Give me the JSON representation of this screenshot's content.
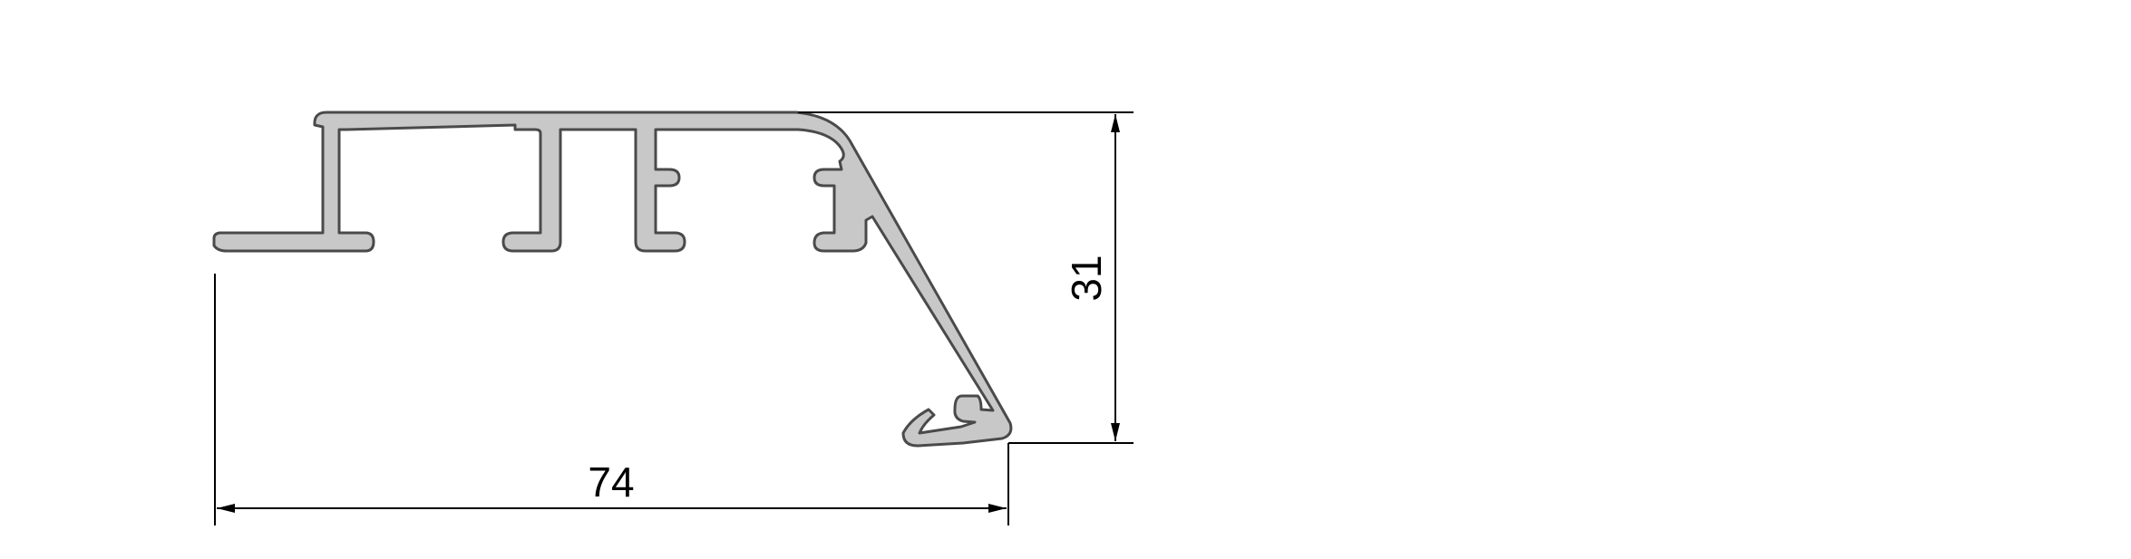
{
  "drawing": {
    "dimensions": {
      "width_label": "74",
      "height_label": "31"
    },
    "colors": {
      "profile_fill": "#c8c8c8",
      "profile_stroke": "#4a4a4a",
      "dimension_line": "#000000",
      "background": "#ffffff"
    }
  }
}
